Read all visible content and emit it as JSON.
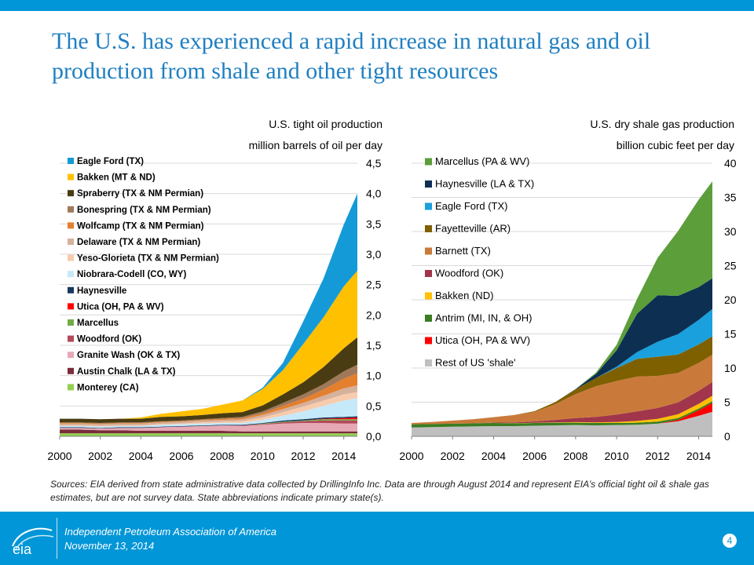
{
  "slide": {
    "title": "The U.S. has experienced a rapid increase in natural gas and oil production from shale and other tight resources",
    "sources": "Sources: EIA derived from state administrative data collected by DrillingInfo Inc. Data are through August 2014 and represent EIA’s official tight oil & shale gas estimates, but are not survey data. State abbreviations indicate primary state(s).",
    "footer_org": "Independent Petroleum Association of America",
    "footer_date": "November 13, 2014",
    "page_number": "4",
    "logo_text": "eia"
  },
  "colors": {
    "accent": "#0096d7",
    "title": "#1f7fc1"
  },
  "chart_data": [
    {
      "type": "area",
      "stacked": true,
      "title": "U.S. tight oil production",
      "ylabel": "million barrels of oil per day",
      "x": [
        2000,
        2001,
        2002,
        2003,
        2004,
        2005,
        2006,
        2007,
        2008,
        2009,
        2010,
        2011,
        2012,
        2013,
        2014,
        2014.67
      ],
      "xticks": [
        "2000",
        "2002",
        "2004",
        "2006",
        "2008",
        "2010",
        "2012",
        "2014"
      ],
      "yticks": [
        "0,0",
        "0,5",
        "1,0",
        "1,5",
        "2,0",
        "2,5",
        "3,0",
        "3,5",
        "4,0",
        "4,5"
      ],
      "ylim": [
        0,
        4.5
      ],
      "y_axis_side": "right",
      "grid": true,
      "legend_position": "top-left",
      "series": [
        {
          "name": "Monterey (CA)",
          "color": "#92d050",
          "values": [
            0.05,
            0.05,
            0.05,
            0.05,
            0.05,
            0.05,
            0.05,
            0.05,
            0.05,
            0.05,
            0.05,
            0.05,
            0.05,
            0.05,
            0.05,
            0.05
          ]
        },
        {
          "name": "Austin Chalk (LA & TX)",
          "color": "#7b2c3b",
          "values": [
            0.06,
            0.06,
            0.05,
            0.05,
            0.04,
            0.04,
            0.04,
            0.04,
            0.04,
            0.03,
            0.03,
            0.03,
            0.03,
            0.03,
            0.03,
            0.03
          ]
        },
        {
          "name": "Granite Wash (OK & TX)",
          "color": "#e6a8b5",
          "values": [
            0.03,
            0.03,
            0.03,
            0.04,
            0.05,
            0.06,
            0.07,
            0.08,
            0.09,
            0.09,
            0.11,
            0.13,
            0.14,
            0.14,
            0.13,
            0.13
          ]
        },
        {
          "name": "Woodford (OK)",
          "color": "#b5485a",
          "values": [
            0,
            0,
            0,
            0,
            0,
            0,
            0,
            0,
            0,
            0.01,
            0.01,
            0.02,
            0.03,
            0.04,
            0.05,
            0.05
          ]
        },
        {
          "name": "Marcellus",
          "color": "#70ad47",
          "values": [
            0,
            0,
            0,
            0,
            0,
            0,
            0,
            0,
            0,
            0,
            0.01,
            0.01,
            0.01,
            0.02,
            0.02,
            0.02
          ]
        },
        {
          "name": "Utica (OH, PA & WV)",
          "color": "#ff0000",
          "values": [
            0,
            0,
            0,
            0,
            0,
            0,
            0,
            0,
            0,
            0,
            0,
            0,
            0,
            0.01,
            0.02,
            0.03
          ]
        },
        {
          "name": "Haynesville",
          "color": "#17375e",
          "values": [
            0.01,
            0.01,
            0.01,
            0.01,
            0.01,
            0.01,
            0.01,
            0.01,
            0.01,
            0.01,
            0.01,
            0.02,
            0.02,
            0.02,
            0.02,
            0.02
          ]
        },
        {
          "name": "Niobrara-Codell (CO, WY)",
          "color": "#c6e9f9",
          "values": [
            0.02,
            0.02,
            0.02,
            0.02,
            0.02,
            0.03,
            0.03,
            0.03,
            0.03,
            0.03,
            0.05,
            0.08,
            0.13,
            0.19,
            0.27,
            0.3
          ]
        },
        {
          "name": "Yeso-Glorieta (TX & NM Permian)",
          "color": "#f8cbad",
          "values": [
            0.01,
            0.01,
            0.01,
            0.01,
            0.01,
            0.01,
            0.01,
            0.02,
            0.02,
            0.03,
            0.04,
            0.06,
            0.08,
            0.09,
            0.1,
            0.1
          ]
        },
        {
          "name": "Delaware (TX & NM Permian)",
          "color": "#d6b19b",
          "values": [
            0.03,
            0.03,
            0.03,
            0.03,
            0.03,
            0.03,
            0.03,
            0.03,
            0.03,
            0.03,
            0.04,
            0.05,
            0.06,
            0.08,
            0.1,
            0.11
          ]
        },
        {
          "name": "Wolfcamp (TX & NM Permian)",
          "color": "#e47f2e",
          "values": [
            0.01,
            0.01,
            0.01,
            0.01,
            0.01,
            0.01,
            0.01,
            0.01,
            0.02,
            0.02,
            0.03,
            0.05,
            0.07,
            0.1,
            0.16,
            0.2
          ]
        },
        {
          "name": "Bonespring (TX & NM Permian)",
          "color": "#a0785a",
          "values": [
            0.01,
            0.01,
            0.01,
            0.01,
            0.01,
            0.01,
            0.01,
            0.01,
            0.01,
            0.02,
            0.03,
            0.05,
            0.07,
            0.09,
            0.12,
            0.14
          ]
        },
        {
          "name": "Spraberry (TX & NM Permian)",
          "color": "#4a3c12",
          "values": [
            0.06,
            0.06,
            0.06,
            0.06,
            0.06,
            0.07,
            0.07,
            0.07,
            0.08,
            0.08,
            0.1,
            0.14,
            0.2,
            0.28,
            0.38,
            0.45
          ]
        },
        {
          "name": "Bakken (MT & ND)",
          "color": "#ffc000",
          "values": [
            0,
            0,
            0,
            0,
            0.02,
            0.05,
            0.08,
            0.1,
            0.14,
            0.19,
            0.27,
            0.4,
            0.63,
            0.82,
            1.02,
            1.1
          ]
        },
        {
          "name": "Eagle Ford (TX)",
          "color": "#149bd7",
          "values": [
            0,
            0,
            0,
            0,
            0,
            0,
            0,
            0,
            0,
            0,
            0.02,
            0.12,
            0.37,
            0.64,
            1.02,
            1.27
          ]
        }
      ]
    },
    {
      "type": "area",
      "stacked": true,
      "title": "U.S. dry shale gas production",
      "ylabel": "billion cubic feet per day",
      "x": [
        2000,
        2001,
        2002,
        2003,
        2004,
        2005,
        2006,
        2007,
        2008,
        2009,
        2010,
        2011,
        2012,
        2013,
        2014,
        2014.67
      ],
      "xticks": [
        "2000",
        "2002",
        "2004",
        "2006",
        "2008",
        "2010",
        "2012",
        "2014"
      ],
      "yticks": [
        "0",
        "5",
        "10",
        "15",
        "20",
        "25",
        "30",
        "35",
        "40"
      ],
      "ylim": [
        0,
        40
      ],
      "y_axis_side": "right",
      "grid": true,
      "legend_position": "top-left",
      "series": [
        {
          "name": "Rest of US 'shale'",
          "color": "#bfbfbf",
          "values": [
            1.3,
            1.35,
            1.4,
            1.45,
            1.5,
            1.5,
            1.55,
            1.6,
            1.65,
            1.6,
            1.65,
            1.7,
            1.85,
            2.2,
            3.0,
            3.6
          ]
        },
        {
          "name": "Utica (OH, PA & WV)",
          "color": "#ff0000",
          "values": [
            0,
            0,
            0,
            0,
            0,
            0,
            0,
            0,
            0,
            0,
            0,
            0,
            0,
            0.2,
            0.8,
            1.3
          ]
        },
        {
          "name": "Antrim (MI, IN, & OH)",
          "color": "#3a7d22",
          "values": [
            0.45,
            0.45,
            0.45,
            0.45,
            0.45,
            0.4,
            0.4,
            0.4,
            0.35,
            0.35,
            0.3,
            0.3,
            0.3,
            0.28,
            0.25,
            0.25
          ]
        },
        {
          "name": "Bakken (ND)",
          "color": "#ffc000",
          "values": [
            0,
            0,
            0,
            0,
            0,
            0.02,
            0.03,
            0.05,
            0.08,
            0.1,
            0.15,
            0.25,
            0.4,
            0.55,
            0.7,
            0.8
          ]
        },
        {
          "name": "Woodford (OK)",
          "color": "#a0354b",
          "values": [
            0,
            0,
            0,
            0,
            0.05,
            0.1,
            0.2,
            0.35,
            0.6,
            0.8,
            1.1,
            1.4,
            1.6,
            1.75,
            1.9,
            2.0
          ]
        },
        {
          "name": "Barnett (TX)",
          "color": "#c97a3a",
          "values": [
            0.2,
            0.3,
            0.45,
            0.6,
            0.8,
            1.1,
            1.4,
            2.3,
            3.5,
            4.5,
            4.9,
            5.1,
            4.7,
            4.3,
            4.1,
            4.0
          ]
        },
        {
          "name": "Fayetteville (AR)",
          "color": "#7f6000",
          "values": [
            0,
            0,
            0,
            0,
            0,
            0,
            0.1,
            0.3,
            0.7,
            1.2,
            1.9,
            2.6,
            2.8,
            2.7,
            2.7,
            2.7
          ]
        },
        {
          "name": "Eagle Ford (TX)",
          "color": "#1aa0dc",
          "values": [
            0,
            0,
            0,
            0,
            0,
            0,
            0,
            0,
            0,
            0,
            0.2,
            1.0,
            2.2,
            3.0,
            3.6,
            4.0
          ]
        },
        {
          "name": "Haynesville (LA & TX)",
          "color": "#0c2f52",
          "values": [
            0,
            0,
            0,
            0,
            0,
            0,
            0,
            0,
            0.05,
            0.6,
            2.4,
            5.6,
            6.8,
            5.6,
            4.8,
            4.5
          ]
        },
        {
          "name": "Marcellus (PA & WV)",
          "color": "#5c9e3a",
          "values": [
            0,
            0,
            0,
            0,
            0,
            0,
            0,
            0,
            0,
            0.2,
            0.8,
            2.2,
            5.5,
            9.5,
            12.8,
            14.2
          ]
        }
      ]
    }
  ]
}
